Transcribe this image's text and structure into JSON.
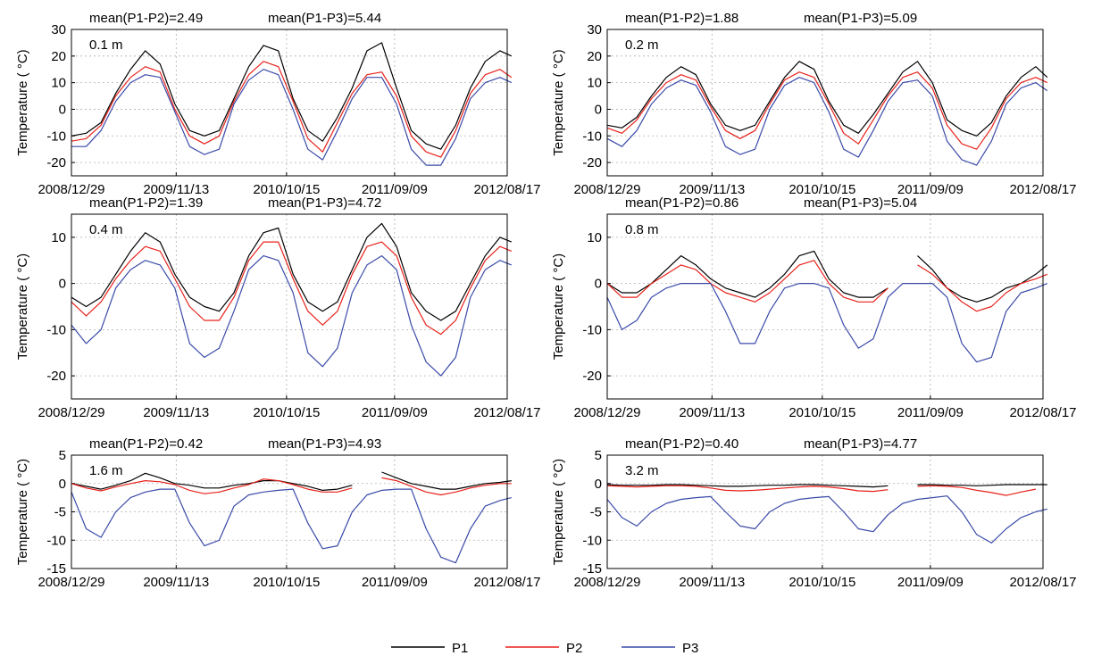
{
  "legend": [
    {
      "name": "P1",
      "color": "#000000"
    },
    {
      "name": "P2",
      "color": "#e8211a"
    },
    {
      "name": "P3",
      "color": "#3a4aa8"
    }
  ],
  "chart_data": [
    {
      "type": "line",
      "depth": "0.1 m",
      "ylabel": "Temperature ( °C)",
      "annotations": [
        "mean(P1-P2)=2.49",
        "mean(P1-P3)=5.44"
      ],
      "xticks": [
        "2008/12/29",
        "2009/11/13",
        "2010/10/15",
        "2011/09/09",
        "2012/08/17"
      ],
      "yticks": [
        30,
        20,
        10,
        0,
        -10,
        -20
      ],
      "ylim": [
        -25,
        30
      ],
      "grid": true,
      "x": [
        "2008/12/29",
        "2009/02/12",
        "2009/03/29",
        "2009/05/13",
        "2009/06/27",
        "2009/08/11",
        "2009/09/25",
        "2009/11/09",
        "2009/12/24",
        "2010/02/07",
        "2010/03/24",
        "2010/05/08",
        "2010/06/22",
        "2010/08/06",
        "2010/09/20",
        "2010/11/04",
        "2010/12/19",
        "2011/02/02",
        "2011/03/19",
        "2011/05/03",
        "2011/06/17",
        "2011/08/01",
        "2011/09/15",
        "2011/10/30",
        "2011/12/14",
        "2012/01/28",
        "2012/03/13",
        "2012/04/27",
        "2012/06/11",
        "2012/07/26",
        "2012/08/30"
      ],
      "series": [
        {
          "name": "P1",
          "values": [
            -10,
            -9,
            -5,
            6,
            15,
            22,
            17,
            2,
            -8,
            -10,
            -8,
            4,
            16,
            24,
            22,
            4,
            -8,
            -12,
            -3,
            8,
            22,
            25,
            8,
            -8,
            -13,
            -15,
            -6,
            8,
            18,
            22,
            20
          ]
        },
        {
          "name": "P2",
          "values": [
            -12,
            -11,
            -6,
            5,
            12,
            16,
            14,
            0,
            -10,
            -13,
            -10,
            3,
            13,
            18,
            16,
            3,
            -11,
            -16,
            -5,
            6,
            13,
            14,
            5,
            -10,
            -16,
            -18,
            -8,
            6,
            13,
            15,
            12
          ]
        },
        {
          "name": "P3",
          "values": [
            -14,
            -14,
            -8,
            3,
            10,
            13,
            12,
            -1,
            -14,
            -17,
            -15,
            2,
            11,
            15,
            13,
            0,
            -15,
            -19,
            -8,
            4,
            12,
            12,
            2,
            -15,
            -21,
            -21,
            -11,
            4,
            10,
            12,
            10
          ]
        }
      ]
    },
    {
      "type": "line",
      "depth": "0.2 m",
      "ylabel": "Temperature ( °C)",
      "annotations": [
        "mean(P1-P2)=1.88",
        "mean(P1-P3)=5.09"
      ],
      "xticks": [
        "2008/12/29",
        "2009/11/13",
        "2010/10/15",
        "2011/09/09",
        "2012/08/17"
      ],
      "yticks": [
        30,
        20,
        10,
        0,
        -10,
        -20
      ],
      "ylim": [
        -25,
        30
      ],
      "grid": true,
      "x": [
        "2008/12/29",
        "2009/02/12",
        "2009/03/29",
        "2009/05/13",
        "2009/06/27",
        "2009/08/11",
        "2009/09/25",
        "2009/11/09",
        "2009/12/24",
        "2010/02/07",
        "2010/03/24",
        "2010/05/08",
        "2010/06/22",
        "2010/08/06",
        "2010/09/20",
        "2010/11/04",
        "2010/12/19",
        "2011/02/02",
        "2011/03/19",
        "2011/05/03",
        "2011/06/17",
        "2011/08/01",
        "2011/09/15",
        "2011/10/30",
        "2011/12/14",
        "2012/01/28",
        "2012/03/13",
        "2012/04/27",
        "2012/06/11",
        "2012/07/26",
        "2012/08/30"
      ],
      "series": [
        {
          "name": "P1",
          "values": [
            -6,
            -7,
            -3,
            5,
            12,
            16,
            13,
            2,
            -6,
            -8,
            -6,
            3,
            12,
            18,
            15,
            3,
            -6,
            -9,
            -2,
            6,
            14,
            18,
            10,
            -4,
            -8,
            -10,
            -5,
            5,
            12,
            16,
            12
          ]
        },
        {
          "name": "P2",
          "values": [
            -7,
            -9,
            -4,
            4,
            10,
            13,
            11,
            1,
            -8,
            -11,
            -8,
            2,
            11,
            14,
            12,
            2,
            -9,
            -13,
            -4,
            5,
            12,
            14,
            8,
            -6,
            -13,
            -15,
            -7,
            4,
            10,
            12,
            10
          ]
        },
        {
          "name": "P3",
          "values": [
            -11,
            -14,
            -8,
            2,
            8,
            11,
            9,
            -1,
            -14,
            -17,
            -15,
            0,
            9,
            12,
            10,
            -1,
            -15,
            -18,
            -8,
            3,
            10,
            11,
            5,
            -12,
            -19,
            -21,
            -12,
            2,
            8,
            10,
            7
          ]
        }
      ]
    },
    {
      "type": "line",
      "depth": "0.4 m",
      "ylabel": "Temperature ( °C)",
      "annotations": [
        "mean(P1-P2)=1.39",
        "mean(P1-P3)=4.72"
      ],
      "xticks": [
        "2008/12/29",
        "2009/11/13",
        "2010/10/15",
        "2011/09/09",
        "2012/08/17"
      ],
      "yticks": [
        10,
        0,
        -10,
        -20
      ],
      "ylim": [
        -25,
        15
      ],
      "grid": true,
      "x": [
        "2008/12/29",
        "2009/02/12",
        "2009/03/29",
        "2009/05/13",
        "2009/06/27",
        "2009/08/11",
        "2009/09/25",
        "2009/11/09",
        "2009/12/24",
        "2010/02/07",
        "2010/03/24",
        "2010/05/08",
        "2010/06/22",
        "2010/08/06",
        "2010/09/20",
        "2010/11/04",
        "2010/12/19",
        "2011/02/02",
        "2011/03/19",
        "2011/05/03",
        "2011/06/17",
        "2011/08/01",
        "2011/09/15",
        "2011/10/30",
        "2011/12/14",
        "2012/01/28",
        "2012/03/13",
        "2012/04/27",
        "2012/06/11",
        "2012/07/26",
        "2012/08/30"
      ],
      "series": [
        {
          "name": "P1",
          "values": [
            -3,
            -5,
            -3,
            2,
            7,
            11,
            9,
            2,
            -3,
            -5,
            -6,
            -2,
            6,
            11,
            12,
            2,
            -4,
            -6,
            -4,
            3,
            10,
            13,
            8,
            -2,
            -6,
            -8,
            -6,
            0,
            6,
            10,
            9
          ]
        },
        {
          "name": "P2",
          "values": [
            -4,
            -7,
            -4,
            1,
            5,
            8,
            7,
            1,
            -5,
            -8,
            -8,
            -3,
            5,
            9,
            9,
            1,
            -6,
            -9,
            -6,
            2,
            8,
            9,
            6,
            -3,
            -9,
            -11,
            -8,
            -1,
            5,
            8,
            7
          ]
        },
        {
          "name": "P3",
          "values": [
            -9,
            -13,
            -10,
            -1,
            3,
            5,
            4,
            -1,
            -13,
            -16,
            -14,
            -6,
            3,
            6,
            5,
            -2,
            -15,
            -18,
            -14,
            -2,
            4,
            6,
            3,
            -9,
            -17,
            -20,
            -16,
            -3,
            3,
            5,
            4
          ]
        }
      ]
    },
    {
      "type": "line",
      "depth": "0.8 m",
      "ylabel": "Temperature ( °C)",
      "annotations": [
        "mean(P1-P2)=0.86",
        "mean(P1-P3)=5.04"
      ],
      "xticks": [
        "2008/12/29",
        "2009/11/13",
        "2010/10/15",
        "2011/09/09",
        "2012/08/17"
      ],
      "yticks": [
        10,
        0,
        -10,
        -20
      ],
      "ylim": [
        -25,
        15
      ],
      "grid": true,
      "x": [
        "2008/12/29",
        "2009/02/12",
        "2009/03/29",
        "2009/05/13",
        "2009/06/27",
        "2009/08/11",
        "2009/09/25",
        "2009/11/09",
        "2009/12/24",
        "2010/02/07",
        "2010/03/24",
        "2010/05/08",
        "2010/06/22",
        "2010/08/06",
        "2010/09/20",
        "2010/11/04",
        "2010/12/19",
        "2011/02/02",
        "2011/03/19",
        "2011/05/03",
        "2011/06/17",
        "2011/08/01",
        "2011/09/15",
        "2011/10/30",
        "2011/12/14",
        "2012/01/28",
        "2012/03/13",
        "2012/04/27",
        "2012/06/11",
        "2012/07/26",
        "2012/08/30"
      ],
      "series": [
        {
          "name": "P1",
          "values": [
            0,
            -2,
            -2,
            0,
            3,
            6,
            4,
            1,
            -1,
            -2,
            -3,
            -1,
            2,
            6,
            7,
            1,
            -2,
            -3,
            -3,
            -1,
            null,
            6,
            3,
            -1,
            -3,
            -4,
            -3,
            -1,
            0,
            2,
            4
          ]
        },
        {
          "name": "P2",
          "values": [
            0,
            -3,
            -3,
            0,
            2,
            4,
            3,
            0,
            -2,
            -3,
            -4,
            -2,
            1,
            4,
            5,
            0,
            -3,
            -4,
            -4,
            -1,
            null,
            4,
            2,
            -1,
            -4,
            -6,
            -5,
            -2,
            0,
            1,
            2
          ]
        },
        {
          "name": "P3",
          "values": [
            -3,
            -10,
            -8,
            -3,
            -1,
            0,
            0,
            0,
            -6,
            -13,
            -13,
            -6,
            -1,
            0,
            0,
            -1,
            -9,
            -14,
            -12,
            -3,
            0,
            0,
            0,
            -3,
            -13,
            -17,
            -16,
            -6,
            -2,
            -1,
            0
          ]
        }
      ]
    },
    {
      "type": "line",
      "depth": "1.6 m",
      "ylabel": "Temperature ( °C)",
      "annotations": [
        "mean(P1-P2)=0.42",
        "mean(P1-P3)=4.93"
      ],
      "xticks": [
        "2008/12/29",
        "2009/11/13",
        "2010/10/15",
        "2011/09/09",
        "2012/08/17"
      ],
      "yticks": [
        5,
        0,
        -5,
        -10,
        -15
      ],
      "ylim": [
        -15,
        5
      ],
      "grid": true,
      "x": [
        "2008/12/29",
        "2009/02/12",
        "2009/03/29",
        "2009/05/13",
        "2009/06/27",
        "2009/08/11",
        "2009/09/25",
        "2009/11/09",
        "2009/12/24",
        "2010/02/07",
        "2010/03/24",
        "2010/05/08",
        "2010/06/22",
        "2010/08/06",
        "2010/09/20",
        "2010/11/04",
        "2010/12/19",
        "2011/02/02",
        "2011/03/19",
        "2011/05/03",
        "2011/06/17",
        "2011/08/01",
        "2011/09/15",
        "2011/10/30",
        "2011/12/14",
        "2012/01/28",
        "2012/03/13",
        "2012/04/27",
        "2012/06/11",
        "2012/07/26",
        "2012/08/30"
      ],
      "series": [
        {
          "name": "P1",
          "values": [
            0,
            -0.5,
            -1,
            -0.3,
            0.5,
            1.8,
            1,
            0,
            -0.3,
            -0.8,
            -0.8,
            -0.3,
            0,
            0.5,
            0.5,
            0,
            -0.5,
            -1.2,
            -1,
            -0.3,
            null,
            2,
            1,
            0,
            -0.5,
            -1,
            -1,
            -0.5,
            0,
            0.2,
            0.5
          ]
        },
        {
          "name": "P2",
          "values": [
            0,
            -0.8,
            -1.3,
            -0.6,
            0,
            0.5,
            0.3,
            -0.2,
            -1.2,
            -1.8,
            -1.5,
            -0.8,
            -0.2,
            0.8,
            0.5,
            -0.2,
            -1,
            -1.5,
            -1.5,
            -0.8,
            null,
            1,
            0.5,
            -0.5,
            -1.5,
            -2,
            -1.5,
            -0.8,
            -0.3,
            0,
            0
          ]
        },
        {
          "name": "P3",
          "values": [
            -1.5,
            -8,
            -9.5,
            -5,
            -2.5,
            -1.5,
            -1,
            -1,
            -7,
            -11,
            -10,
            -4,
            -2,
            -1.5,
            -1.2,
            -1,
            -7,
            -11.5,
            -11,
            -5,
            -2,
            -1.2,
            -1,
            -1,
            -8,
            -13,
            -14,
            -8,
            -4,
            -3,
            -2.5
          ]
        }
      ]
    },
    {
      "type": "line",
      "depth": "3.2 m",
      "ylabel": "Temperature ( °C)",
      "annotations": [
        "mean(P1-P2)=0.40",
        "mean(P1-P3)=4.77"
      ],
      "xticks": [
        "2008/12/29",
        "2009/11/13",
        "2010/10/15",
        "2011/09/09",
        "2012/08/17"
      ],
      "yticks": [
        5,
        0,
        -5,
        -10,
        -15
      ],
      "ylim": [
        -15,
        5
      ],
      "grid": true,
      "x": [
        "2008/12/29",
        "2009/02/12",
        "2009/03/29",
        "2009/05/13",
        "2009/06/27",
        "2009/08/11",
        "2009/09/25",
        "2009/11/09",
        "2009/12/24",
        "2010/02/07",
        "2010/03/24",
        "2010/05/08",
        "2010/06/22",
        "2010/08/06",
        "2010/09/20",
        "2010/11/04",
        "2010/12/19",
        "2011/02/02",
        "2011/03/19",
        "2011/05/03",
        "2011/06/17",
        "2011/08/01",
        "2011/09/15",
        "2011/10/30",
        "2011/12/14",
        "2012/01/28",
        "2012/03/13",
        "2012/04/27",
        "2012/06/11",
        "2012/07/26",
        "2012/08/30"
      ],
      "series": [
        {
          "name": "P1",
          "values": [
            -0.2,
            -0.3,
            -0.3,
            -0.3,
            -0.2,
            -0.2,
            -0.3,
            -0.4,
            -0.5,
            -0.5,
            -0.4,
            -0.3,
            -0.3,
            -0.2,
            -0.2,
            -0.3,
            -0.4,
            -0.5,
            -0.6,
            -0.4,
            null,
            -0.2,
            -0.2,
            -0.3,
            -0.3,
            -0.4,
            -0.3,
            -0.2,
            -0.2,
            -0.2,
            -0.2
          ]
        },
        {
          "name": "P2",
          "values": [
            -0.4,
            -0.5,
            -0.6,
            -0.5,
            -0.4,
            -0.4,
            -0.5,
            -0.8,
            -1.2,
            -1.3,
            -1.2,
            -1,
            -0.8,
            -0.6,
            -0.5,
            -0.6,
            -0.9,
            -1.3,
            -1.4,
            -1.1,
            null,
            -0.5,
            -0.4,
            -0.5,
            -0.7,
            -1.2,
            -1.6,
            -2.1,
            -1.5,
            -1,
            null
          ]
        },
        {
          "name": "P3",
          "values": [
            -2.8,
            -6,
            -7.5,
            -5,
            -3.5,
            -2.8,
            -2.5,
            -2.3,
            -5,
            -7.5,
            -8,
            -5,
            -3.5,
            -2.8,
            -2.5,
            -2.3,
            -5,
            -8,
            -8.5,
            -5.5,
            -3.5,
            -2.8,
            -2.5,
            -2.2,
            -5,
            -9,
            -10.5,
            -8,
            -6,
            -5,
            -4.5
          ]
        }
      ]
    }
  ]
}
